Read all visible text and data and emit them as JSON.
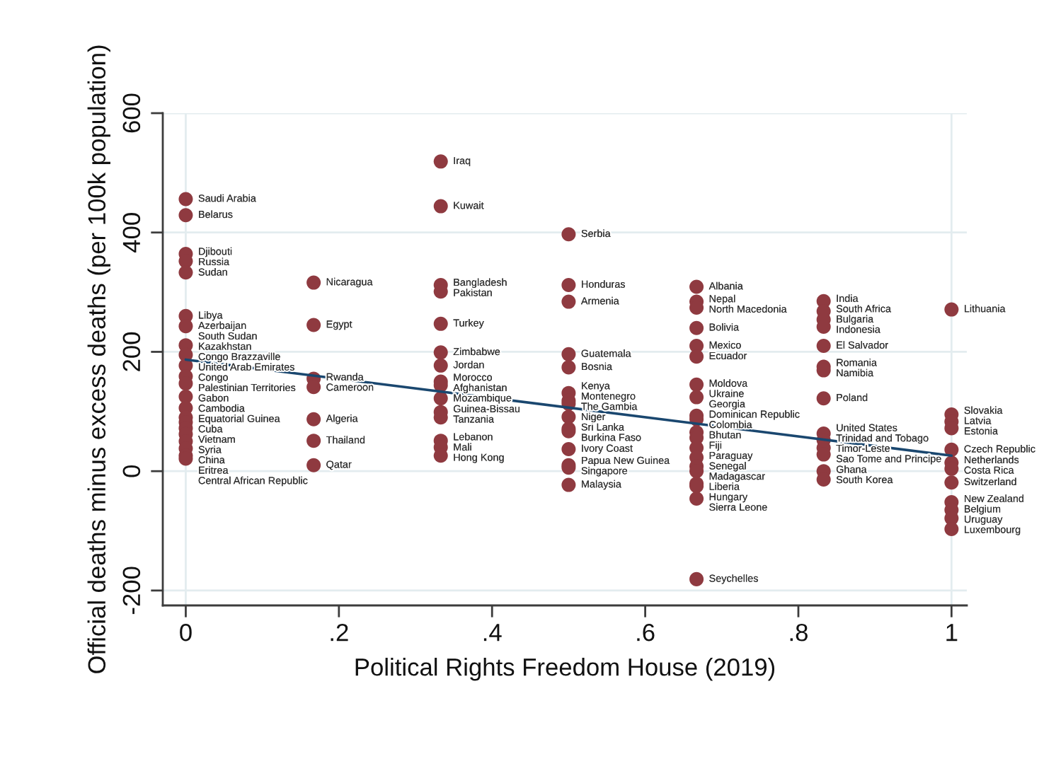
{
  "chart_data": {
    "type": "scatter",
    "xlabel": "Political Rights Freedom House (2019)",
    "ylabel": "Official deaths minus excess deaths (per 100k population)",
    "xlim": [
      -0.03,
      1.02
    ],
    "ylim": [
      -225,
      600
    ],
    "xticks": [
      0,
      {
        "value": 0.2,
        "label": ".2"
      },
      {
        "value": 0.4,
        "label": ".4"
      },
      {
        "value": 0.6,
        "label": ".6"
      },
      {
        "value": 0.8,
        "label": ".8"
      },
      1
    ],
    "yticks": [
      -200,
      0,
      200,
      400,
      600
    ],
    "grid": "y",
    "ref_lines": [
      {
        "axis": "x",
        "value": 0,
        "color": "#e3ecef"
      },
      {
        "axis": "x",
        "value": 1,
        "color": "#e3ecef"
      }
    ],
    "series": [
      {
        "color": "#8f3a40",
        "marker": "circle",
        "x": [
          0,
          0,
          0,
          0,
          0,
          0,
          0,
          0,
          0,
          0,
          0,
          0,
          0,
          0,
          0,
          0,
          0,
          0,
          0,
          0,
          0,
          0,
          0.167,
          0.167,
          0.167,
          0.167,
          0.167,
          0.167,
          0.167,
          0.333,
          0.333,
          0.333,
          0.333,
          0.333,
          0.333,
          0.333,
          0.333,
          0.333,
          0.333,
          0.333,
          0.333,
          0.333,
          0.333,
          0.333,
          0.5,
          0.5,
          0.5,
          0.5,
          0.5,
          0.5,
          0.5,
          0.5,
          0.5,
          0.5,
          0.5,
          0.5,
          0.5,
          0.5,
          0.5,
          0.667,
          0.667,
          0.667,
          0.667,
          0.667,
          0.667,
          0.667,
          0.667,
          0.667,
          0.667,
          0.667,
          0.667,
          0.667,
          0.667,
          0.667,
          0.667,
          0.667,
          0.667,
          0.667,
          0.667,
          0.833,
          0.833,
          0.833,
          0.833,
          0.833,
          0.833,
          0.833,
          0.833,
          0.833,
          0.833,
          0.833,
          0.833,
          0.833,
          0.833,
          1,
          1,
          1,
          1,
          1,
          1,
          1,
          1,
          1,
          1,
          1,
          1
        ],
        "values": [
          456,
          429,
          364,
          352,
          333,
          260,
          243,
          211,
          195,
          177,
          159,
          147,
          125,
          106,
          90,
          82,
          72,
          62,
          50,
          38,
          26,
          21,
          316,
          245,
          155,
          141,
          87,
          51,
          10,
          519,
          444,
          312,
          301,
          247,
          199,
          177,
          150,
          144,
          122,
          99,
          90,
          51,
          40,
          26,
          397,
          312,
          284,
          196,
          174,
          131,
          118,
          113,
          91,
          71,
          67,
          37,
          10,
          6,
          -23,
          309,
          284,
          274,
          240,
          210,
          192,
          145,
          124,
          93,
          87,
          65,
          56,
          39,
          23,
          8,
          0,
          -21,
          -25,
          -46,
          -181,
          285,
          268,
          254,
          242,
          210,
          175,
          169,
          122,
          63,
          52,
          39,
          28,
          0,
          -14,
          271,
          95,
          83,
          72,
          36,
          14,
          4,
          -19,
          -52,
          -65,
          -79,
          -97
        ],
        "value_labels": [
          "Saudi Arabia",
          "Belarus",
          "Djibouti",
          "Russia",
          "Sudan",
          "Libya",
          "Azerbaijan",
          "South Sudan",
          "Kazakhstan",
          "Congo Brazzaville",
          "United Arab Emirates",
          "Congo",
          "Palestinian Territories",
          "Gabon",
          "Cambodia",
          "Equatorial Guinea",
          "Cuba",
          "Vietnam",
          "Syria",
          "China",
          "Eritrea",
          "Central African Republic",
          "Nicaragua",
          "Egypt",
          "Rwanda",
          "Cameroon",
          "Algeria",
          "Thailand",
          "Qatar",
          "Iraq",
          "Kuwait",
          "Bangladesh",
          "Pakistan",
          "Turkey",
          "Zimbabwe",
          "Jordan",
          "Morocco",
          "Afghanistan",
          "Mozambique",
          "Guinea-Bissau",
          "Tanzania",
          "Lebanon",
          "Mali",
          "Hong Kong",
          "Serbia",
          "Honduras",
          "Armenia",
          "Guatemala",
          "Bosnia",
          "Kenya",
          "Montenegro",
          "The Gambia",
          "Niger",
          "Sri Lanka",
          "Burkina Faso",
          "Ivory Coast",
          "Papua New Guinea",
          "Singapore",
          "Malaysia",
          "Albania",
          "Nepal",
          "North Macedonia",
          "Bolivia",
          "Mexico",
          "Ecuador",
          "Moldova",
          "Ukraine",
          "Georgia",
          "Dominican Republic",
          "Colombia",
          "Bhutan",
          "Fiji",
          "Paraguay",
          "Senegal",
          "Madagascar",
          "Liberia",
          "Hungary",
          "Sierra Leone",
          "Seychelles",
          "India",
          "South Africa",
          "Bulgaria",
          "Indonesia",
          "El Salvador",
          "Romania",
          "Namibia",
          "Poland",
          "United States",
          "Trinidad and Tobago",
          "Timor-Leste",
          "Sao Tome and Principe",
          "Ghana",
          "South Korea",
          "Lithuania",
          "Slovakia",
          "Latvia",
          "Estonia",
          "Czech Republic",
          "Netherlands",
          "Costa Rica",
          "Switzerland",
          "New Zealand",
          "Belgium",
          "Uruguay",
          "Luxembourg"
        ]
      },
      {
        "type": "line",
        "color": "#1a476f",
        "x": [
          0,
          1
        ],
        "values": [
          187,
          26
        ]
      }
    ]
  }
}
